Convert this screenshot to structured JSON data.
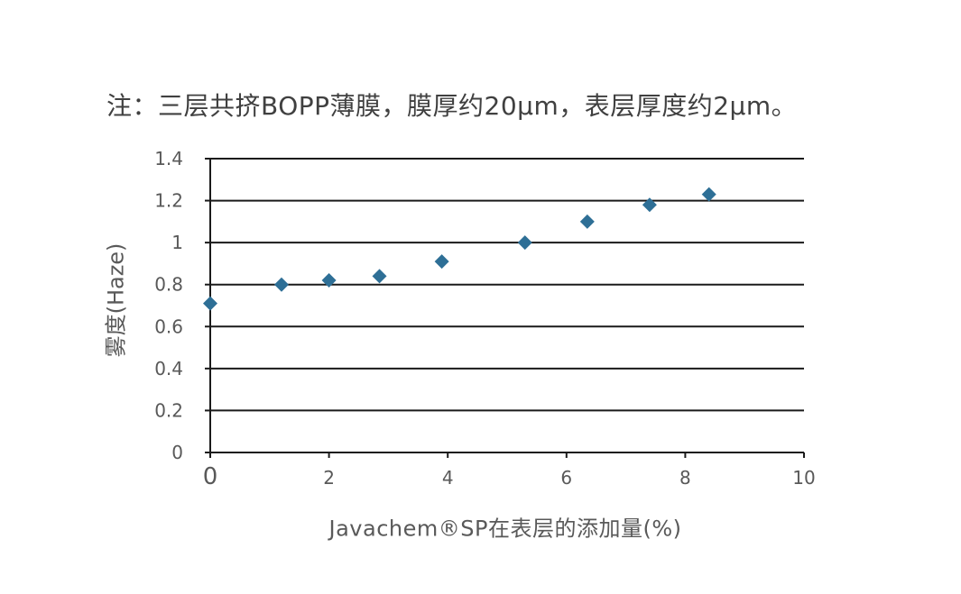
{
  "note": "注：三层共挤BOPP薄膜，膜厚约20μm，表层厚度约2μm。",
  "chart_data": {
    "type": "scatter",
    "title": "",
    "xlabel": "Javachem®SP在表层的添加量(%)",
    "ylabel": "雾度(Haze)",
    "xlim": [
      0,
      10
    ],
    "ylim": [
      0,
      1.4
    ],
    "x_ticks": [
      "0",
      "2",
      "4",
      "6",
      "8",
      "10"
    ],
    "y_ticks": [
      "0",
      "0.2",
      "0.4",
      "0.6",
      "0.8",
      "1",
      "1.2",
      "1.4"
    ],
    "grid": "horizontal",
    "marker": "diamond",
    "marker_color": "#2e6f96",
    "x": [
      0,
      1.2,
      2.0,
      2.85,
      3.9,
      5.3,
      6.35,
      7.4,
      8.4
    ],
    "y": [
      0.71,
      0.8,
      0.82,
      0.84,
      0.91,
      1.0,
      1.1,
      1.18,
      1.23
    ]
  }
}
